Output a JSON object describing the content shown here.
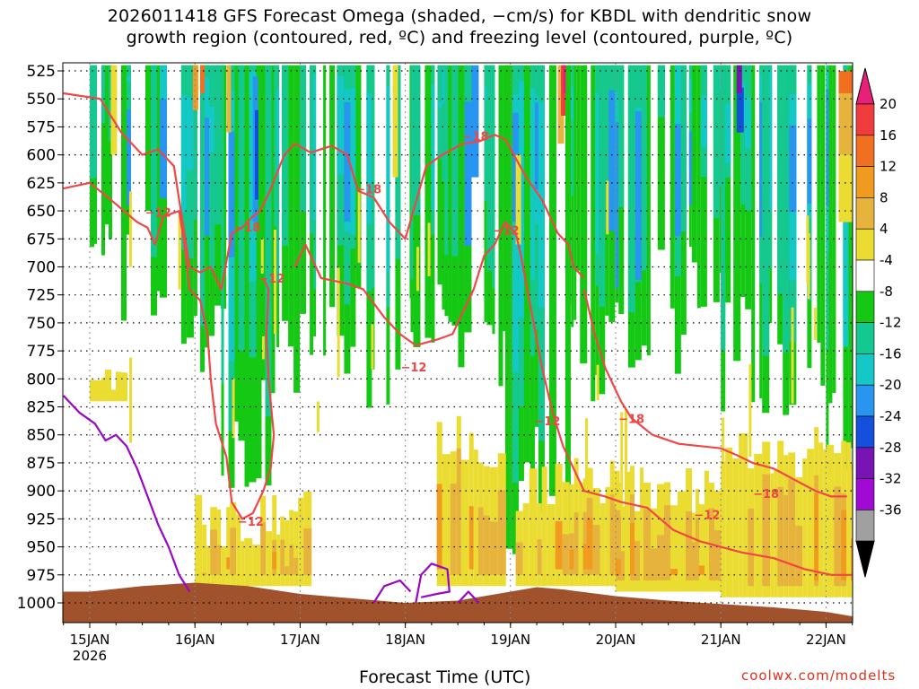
{
  "title": {
    "line1": "2026011418 GFS Forecast Omega (shaded, −cm/s) for KBDL with dendritic snow",
    "line2": "growth region (contoured, red, ºC) and freezing level (contoured, purple, ºC)"
  },
  "x_axis_title": "Forecast Time (UTC)",
  "credit": "coolwx.com/modelts",
  "colors": {
    "dgz_contour": "#f04646",
    "freezing_contour": "#9a06c8",
    "terrain": "#a0522d",
    "grid": "#000000"
  },
  "chart_data": {
    "type": "heatmap",
    "title": "2026011418 GFS Forecast Omega (shaded, −cm/s) for KBDL with dendritic snow growth region (contoured, red, ºC) and freezing level (contoured, purple, ºC)",
    "xlabel": "Forecast Time (UTC)",
    "ylabel": "",
    "y_axis_reversed": true,
    "y_ticks": [
      "525",
      "550",
      "575",
      "600",
      "625",
      "650",
      "675",
      "700",
      "725",
      "750",
      "775",
      "800",
      "825",
      "850",
      "875",
      "900",
      "925",
      "950",
      "975",
      "1000"
    ],
    "ylim": [
      525,
      1020
    ],
    "x_ticks": [
      {
        "label": "15JAN",
        "sub": "2026",
        "day": 0
      },
      {
        "label": "16JAN",
        "sub": "",
        "day": 1
      },
      {
        "label": "17JAN",
        "sub": "",
        "day": 2
      },
      {
        "label": "18JAN",
        "sub": "",
        "day": 3
      },
      {
        "label": "19JAN",
        "sub": "",
        "day": 4
      },
      {
        "label": "20JAN",
        "sub": "",
        "day": 5
      },
      {
        "label": "21JAN",
        "sub": "",
        "day": 6
      },
      {
        "label": "22JAN",
        "sub": "",
        "day": 7
      }
    ],
    "xlim": [
      -0.25,
      7.25
    ],
    "grid": true,
    "colorbar": {
      "labels": [
        "20",
        "16",
        "12",
        "8",
        "4",
        "-4",
        "-8",
        "-12",
        "-16",
        "-20",
        "-24",
        "-28",
        "-32",
        "-36"
      ],
      "colors": [
        "#e8207a",
        "#f03c3c",
        "#f07020",
        "#f09a20",
        "#e6b43c",
        "#ebdc32",
        "#ffffff",
        "#14c814",
        "#14c890",
        "#14c8c8",
        "#2896f0",
        "#1450dc",
        "#7814b4",
        "#a00ad2",
        "#a0a0a0",
        "#000000"
      ]
    },
    "contour_labels": [
      {
        "text": "−12",
        "day": 0.65,
        "p": 652
      },
      {
        "text": "−18",
        "day": 1.5,
        "p": 665
      },
      {
        "text": "−12",
        "day": 1.73,
        "p": 711
      },
      {
        "text": "−18",
        "day": 2.65,
        "p": 631
      },
      {
        "text": "−18",
        "day": 3.67,
        "p": 584
      },
      {
        "text": "−12",
        "day": 3.96,
        "p": 668
      },
      {
        "text": "−12",
        "day": 3.08,
        "p": 790
      },
      {
        "text": "−12",
        "day": 4.35,
        "p": 838
      },
      {
        "text": "−18",
        "day": 5.15,
        "p": 836
      },
      {
        "text": "−12",
        "day": 1.53,
        "p": 928
      },
      {
        "text": "−12",
        "day": 5.87,
        "p": 922
      },
      {
        "text": "−18",
        "day": 6.43,
        "p": 903
      }
    ]
  }
}
